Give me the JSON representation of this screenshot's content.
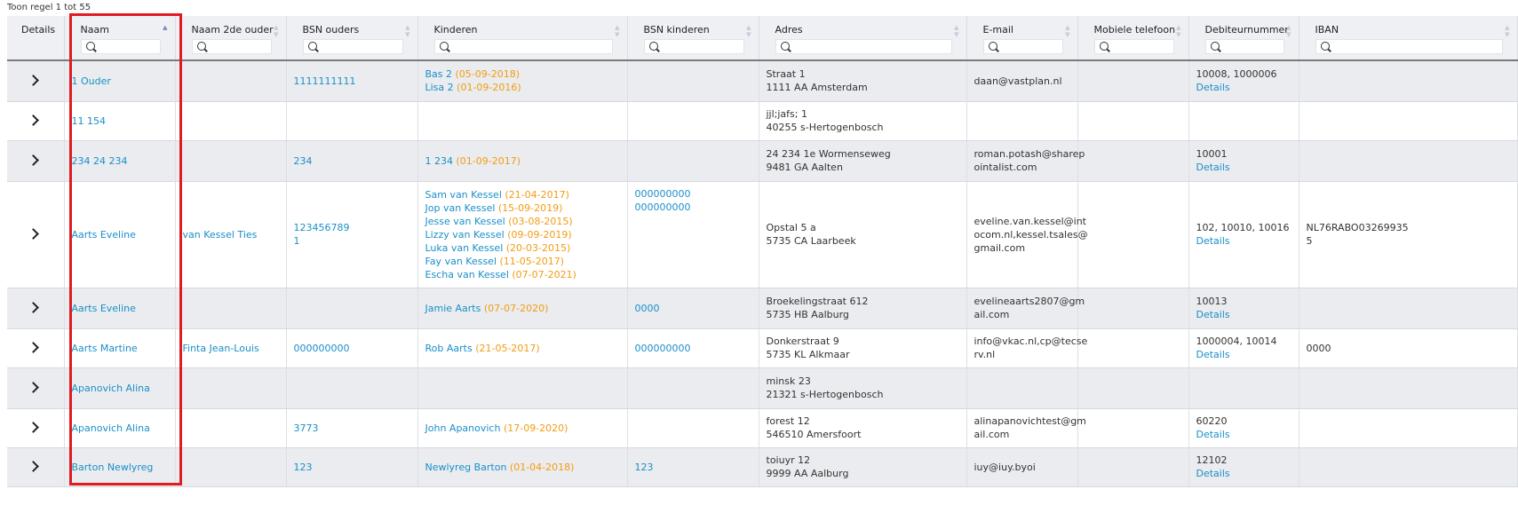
{
  "caption": "Toon regel 1 tot 55",
  "columns": [
    {
      "label": "Details",
      "search": false
    },
    {
      "label": "Naam",
      "search": true,
      "sort": "asc"
    },
    {
      "label": "Naam 2de ouder",
      "search": true
    },
    {
      "label": "BSN ouders",
      "search": true
    },
    {
      "label": "Kinderen",
      "search": true
    },
    {
      "label": "BSN kinderen",
      "search": true
    },
    {
      "label": "Adres",
      "search": true
    },
    {
      "label": "E-mail",
      "search": true
    },
    {
      "label": "Mobiele telefoon",
      "search": true
    },
    {
      "label": "Debiteurnummer",
      "search": true
    },
    {
      "label": "IBAN",
      "search": true
    }
  ],
  "debtor_link_label": "Details",
  "rows": [
    {
      "name": "1 Ouder",
      "name2": "",
      "bsn_parents": [
        "1111111111"
      ],
      "children": [
        {
          "name": "Bas 2",
          "date": "(05-09-2018)"
        },
        {
          "name": "Lisa 2",
          "date": "(01-09-2016)"
        }
      ],
      "bsn_children": [],
      "address": [
        "Straat 1",
        "1111 AA Amsterdam"
      ],
      "email": [
        "daan@vastplan.nl"
      ],
      "mobile": "",
      "debtor": "10008, 1000006",
      "debtor_details": true,
      "iban": []
    },
    {
      "name": "11 154",
      "name2": "",
      "bsn_parents": [],
      "children": [],
      "bsn_children": [],
      "address": [
        "jjl;jafs; 1",
        "40255 s-Hertogenbosch"
      ],
      "email": [],
      "mobile": "",
      "debtor": "",
      "debtor_details": false,
      "iban": []
    },
    {
      "name": "234 24 234",
      "name2": "",
      "bsn_parents": [
        "234"
      ],
      "children": [
        {
          "name": "1 234",
          "date": "(01-09-2017)"
        }
      ],
      "bsn_children": [],
      "address": [
        "24 234 1e Wormenseweg",
        "9481 GA Aalten"
      ],
      "email": [
        "roman.potash@sharep",
        "ointalist.com"
      ],
      "mobile": "",
      "debtor": "10001",
      "debtor_details": true,
      "iban": []
    },
    {
      "name": "Aarts Eveline",
      "name2": "van Kessel Ties",
      "bsn_parents": [
        "123456789",
        "1"
      ],
      "children": [
        {
          "name": "Sam van Kessel",
          "date": "(21-04-2017)"
        },
        {
          "name": "Jop van Kessel",
          "date": "(15-09-2019)"
        },
        {
          "name": "Jesse van Kessel",
          "date": "(03-08-2015)"
        },
        {
          "name": "Lizzy van Kessel",
          "date": "(09-09-2019)"
        },
        {
          "name": "Luka van Kessel",
          "date": "(20-03-2015)"
        },
        {
          "name": "Fay van Kessel",
          "date": "(11-05-2017)"
        },
        {
          "name": "Escha van Kessel",
          "date": "(07-07-2021)"
        }
      ],
      "bsn_children": [
        "000000000",
        "000000000"
      ],
      "bsn_children_top": true,
      "address": [
        "Opstal 5 a",
        "5735 CA Laarbeek"
      ],
      "email": [
        "eveline.van.kessel@int",
        "ocom.nl,kessel.tsales@",
        "gmail.com"
      ],
      "mobile": "",
      "debtor": "102, 10010, 10016",
      "debtor_details": true,
      "iban": [
        "NL76RABO03269935",
        "5"
      ]
    },
    {
      "name": "Aarts Eveline",
      "name2": "",
      "bsn_parents": [],
      "children": [
        {
          "name": "Jamie Aarts",
          "date": "(07-07-2020)"
        }
      ],
      "bsn_children": [
        "0000"
      ],
      "address": [
        "Broekelingstraat 612",
        "5735 HB Aalburg"
      ],
      "email": [
        "evelineaarts2807@gm",
        "ail.com"
      ],
      "mobile": "",
      "debtor": "10013",
      "debtor_details": true,
      "iban": []
    },
    {
      "name": "Aarts Martine",
      "name2": "Finta Jean-Louis",
      "bsn_parents": [
        "000000000"
      ],
      "children": [
        {
          "name": "Rob Aarts",
          "date": "(21-05-2017)"
        }
      ],
      "bsn_children": [
        "000000000"
      ],
      "address": [
        "Donkerstraat 9",
        "5735 KL Alkmaar"
      ],
      "email": [
        "info@vkac.nl,cp@tecse",
        "rv.nl"
      ],
      "mobile": "",
      "debtor": "1000004, 10014",
      "debtor_details": true,
      "iban": [
        "0000"
      ]
    },
    {
      "name": "Apanovich Alina",
      "name2": "",
      "bsn_parents": [],
      "children": [],
      "bsn_children": [],
      "address": [
        "minsk 23",
        "21321 s-Hertogenbosch"
      ],
      "email": [],
      "mobile": "",
      "debtor": "",
      "debtor_details": false,
      "iban": []
    },
    {
      "name": "Apanovich Alina",
      "name2": "",
      "bsn_parents": [
        "3773"
      ],
      "children": [
        {
          "name": "John Apanovich",
          "date": "(17-09-2020)"
        }
      ],
      "bsn_children": [],
      "address": [
        "forest 12",
        "546510 Amersfoort"
      ],
      "email": [
        "alinapanovichtest@gm",
        "ail.com"
      ],
      "mobile": "",
      "debtor": "60220",
      "debtor_details": true,
      "iban": []
    },
    {
      "name": "Barton Newlyreg",
      "name2": "",
      "bsn_parents": [
        "123"
      ],
      "children": [
        {
          "name": "Newlyreg Barton",
          "date": "(01-04-2018)"
        }
      ],
      "bsn_children": [
        "123"
      ],
      "address": [
        "toiuyr 12",
        "9999 AA Aalburg"
      ],
      "email": [
        "iuy@iuy.byoi"
      ],
      "mobile": "",
      "debtor": "12102",
      "debtor_details": true,
      "iban": []
    }
  ],
  "row_heights": null
}
